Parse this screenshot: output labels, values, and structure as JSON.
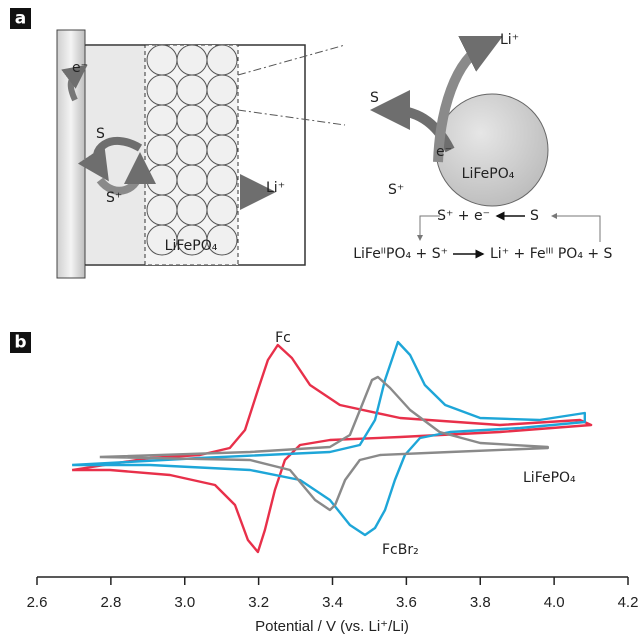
{
  "panel_a": {
    "label": "a",
    "cell": {
      "electron": "e⁻",
      "mediator": "S",
      "mediator_ox": "S⁺",
      "particles": "LiFePO₄",
      "lithium": "Li⁺"
    },
    "zoom": {
      "mediator": "S",
      "lithium": "Li⁺",
      "electron": "e⁻",
      "mediator_ox": "S⁺",
      "particle": "LiFePO₄"
    },
    "reactions": {
      "regen_left": "S⁺ + e⁻",
      "regen_right": "S",
      "main_left": "LiFeᴵᴵPO₄ + S⁺",
      "main_right": "Li⁺ + Feᴵᴵᴵ PO₄ + S"
    }
  },
  "chart_data": {
    "type": "line",
    "label": "b",
    "x_label": "Potential / V (vs. Li⁺/Li)",
    "xlim": [
      2.6,
      4.2
    ],
    "ylim": [
      -1.2,
      1.2
    ],
    "xticks": [
      2.6,
      2.8,
      {
        "value": 3.0,
        "label": "3.0"
      },
      3.2,
      3.4,
      3.6,
      3.8,
      {
        "value": 4.0,
        "label": "4.0"
      },
      4.2
    ],
    "series": [
      {
        "name": "Fc",
        "color": "#e8304a",
        "x": [
          2.695,
          2.906,
          3.041,
          3.122,
          3.163,
          3.198,
          3.225,
          3.252,
          3.29,
          3.339,
          3.42,
          3.583,
          3.853,
          4.07,
          4.1,
          3.853,
          3.583,
          3.393,
          3.312,
          3.271,
          3.244,
          3.217,
          3.198,
          3.171,
          3.136,
          3.082,
          2.96,
          2.798,
          2.695
        ],
        "values": [
          -0.2,
          -0.08,
          -0.05,
          0.02,
          0.2,
          0.6,
          0.9,
          1.05,
          0.92,
          0.65,
          0.45,
          0.32,
          0.25,
          0.3,
          0.25,
          0.18,
          0.13,
          0.1,
          0.05,
          -0.1,
          -0.4,
          -0.8,
          -1.02,
          -0.9,
          -0.55,
          -0.35,
          -0.25,
          -0.2,
          -0.2
        ]
      },
      {
        "name": "FcBr₂",
        "color": "#1ea6d8",
        "x": [
          2.695,
          3.041,
          3.393,
          3.474,
          3.515,
          3.542,
          3.577,
          3.61,
          3.65,
          3.705,
          3.8,
          3.96,
          4.083,
          4.083,
          3.908,
          3.718,
          3.637,
          3.596,
          3.569,
          3.542,
          3.515,
          3.488,
          3.447,
          3.393,
          3.312,
          3.177,
          2.906,
          2.695
        ],
        "values": [
          -0.15,
          -0.08,
          -0.02,
          0.05,
          0.3,
          0.7,
          1.08,
          0.95,
          0.65,
          0.45,
          0.32,
          0.3,
          0.37,
          0.28,
          0.22,
          0.18,
          0.12,
          -0.05,
          -0.3,
          -0.6,
          -0.78,
          -0.85,
          -0.75,
          -0.5,
          -0.3,
          -0.2,
          -0.15,
          -0.15
        ]
      },
      {
        "name": "LiFePO₄",
        "color": "#8a8a8a",
        "x": [
          2.77,
          3.177,
          3.393,
          3.447,
          3.48,
          3.507,
          3.523,
          3.556,
          3.61,
          3.69,
          3.8,
          3.983,
          3.983,
          3.718,
          3.529,
          3.474,
          3.434,
          3.407,
          3.393,
          3.353,
          3.285,
          3.177,
          2.77
        ],
        "values": [
          -0.07,
          -0.02,
          0.03,
          0.15,
          0.45,
          0.7,
          0.73,
          0.62,
          0.4,
          0.18,
          0.07,
          0.03,
          0.02,
          -0.02,
          -0.05,
          -0.1,
          -0.3,
          -0.55,
          -0.6,
          -0.5,
          -0.2,
          -0.1,
          -0.07
        ]
      }
    ]
  }
}
